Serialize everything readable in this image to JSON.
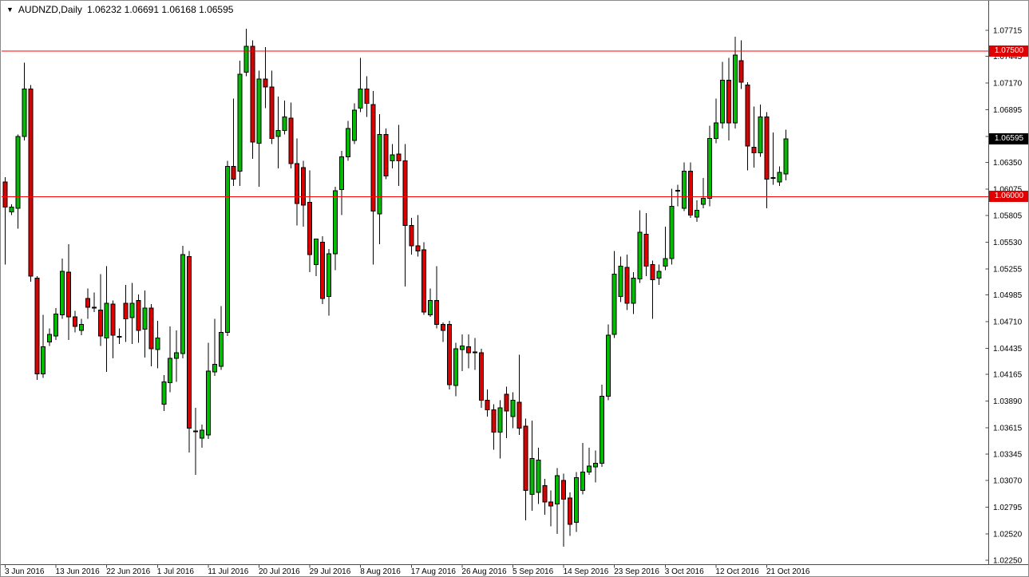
{
  "window": {
    "dropdown_icon": "▼",
    "title_symbol": "AUDNZD,Daily",
    "title_ohlc": "1.06232 1.06691 1.06168 1.06595"
  },
  "colors": {
    "background": "#FFFFFF",
    "bull": "#00BB00",
    "bear": "#DC0000",
    "wick": "#000000",
    "body_outline": "#000000",
    "hline": "#FF0000",
    "tag_red_bg": "#E00000",
    "tag_black_bg": "#000000",
    "tag_text": "#FFFFFF",
    "axis_line": "#4A4A4A",
    "text": "#000000"
  },
  "y_axis": [
    {
      "label": "1.07715",
      "price": 1.07715
    },
    {
      "label": "1.07445",
      "price": 1.07445
    },
    {
      "label": "1.07170",
      "price": 1.0717
    },
    {
      "label": "1.06895",
      "price": 1.06895
    },
    {
      "label": "1.06620",
      "price": 1.0662
    },
    {
      "label": "1.06350",
      "price": 1.0635
    },
    {
      "label": "1.06075",
      "price": 1.06075
    },
    {
      "label": "1.05805",
      "price": 1.05805
    },
    {
      "label": "1.05530",
      "price": 1.0553
    },
    {
      "label": "1.05255",
      "price": 1.05255
    },
    {
      "label": "1.04985",
      "price": 1.04985
    },
    {
      "label": "1.04710",
      "price": 1.0471
    },
    {
      "label": "1.04435",
      "price": 1.04435
    },
    {
      "label": "1.04165",
      "price": 1.04165
    },
    {
      "label": "1.03890",
      "price": 1.0389
    },
    {
      "label": "1.03615",
      "price": 1.03615
    },
    {
      "label": "1.03345",
      "price": 1.03345
    },
    {
      "label": "1.03070",
      "price": 1.0307
    },
    {
      "label": "1.02795",
      "price": 1.02795
    },
    {
      "label": "1.02520",
      "price": 1.0252
    },
    {
      "label": "1.02250",
      "price": 1.0225
    }
  ],
  "x_axis": [
    {
      "label": "3 Jun 2016",
      "idx": 0
    },
    {
      "label": "13 Jun 2016",
      "idx": 8
    },
    {
      "label": "22 Jun 2016",
      "idx": 16
    },
    {
      "label": "1 Jul 2016",
      "idx": 24
    },
    {
      "label": "11 Jul 2016",
      "idx": 32
    },
    {
      "label": "20 Jul 2016",
      "idx": 40
    },
    {
      "label": "29 Jul 2016",
      "idx": 48
    },
    {
      "label": "8 Aug 2016",
      "idx": 56
    },
    {
      "label": "17 Aug 2016",
      "idx": 64
    },
    {
      "label": "26 Aug 2016",
      "idx": 72
    },
    {
      "label": "5 Sep 2016",
      "idx": 80
    },
    {
      "label": "14 Sep 2016",
      "idx": 88
    },
    {
      "label": "23 Sep 2016",
      "idx": 96
    },
    {
      "label": "3 Oct 2016",
      "idx": 104
    },
    {
      "label": "12 Oct 2016",
      "idx": 112
    },
    {
      "label": "21 Oct 2016",
      "idx": 120
    }
  ],
  "hlines": [
    {
      "price": 1.075,
      "tag": "1.07500"
    },
    {
      "price": 1.06,
      "tag": "1.06000"
    }
  ],
  "price_tag": {
    "value": "1.06595",
    "price": 1.06595
  },
  "chart_data": {
    "type": "candlestick",
    "symbol": "AUDNZD",
    "timeframe": "Daily",
    "title": "AUDNZD,Daily",
    "current_bar": {
      "open": 1.06232,
      "high": 1.06691,
      "low": 1.06168,
      "close": 1.06595
    },
    "y_range": [
      1.0225,
      1.07715
    ],
    "x_range": [
      "3 Jun 2016",
      "26 Oct 2016"
    ],
    "grid": false,
    "legend": false,
    "horizontal_levels": [
      1.075,
      1.06
    ],
    "candles_format": "[open, high, low, close, dash?]",
    "candles": [
      [
        1.0615,
        1.062,
        1.053,
        1.0589
      ],
      [
        1.0584,
        1.0592,
        1.0581,
        1.0589
      ],
      [
        1.0588,
        1.0664,
        1.0567,
        1.0662
      ],
      [
        1.0662,
        1.0738,
        1.0658,
        1.0711
      ],
      [
        1.0711,
        1.0715,
        1.0512,
        1.0518
      ],
      [
        1.0516,
        1.0518,
        1.0411,
        1.0417
      ],
      [
        1.0417,
        1.0478,
        1.0413,
        1.0445
      ],
      [
        1.045,
        1.0464,
        1.0446,
        1.0458
      ],
      [
        1.0456,
        1.0485,
        1.0452,
        1.0479
      ],
      [
        1.0478,
        1.0536,
        1.0474,
        1.0523
      ],
      [
        1.0522,
        1.0551,
        1.0452,
        1.0476
      ],
      [
        1.0476,
        1.0482,
        1.046,
        1.0466
      ],
      [
        1.0462,
        1.0474,
        1.0457,
        1.0468
      ],
      [
        1.0495,
        1.0505,
        1.0474,
        1.0486
      ],
      [
        1.0486,
        1.0501,
        1.0481,
        1.0485,
        1
      ],
      [
        1.0483,
        1.052,
        1.0446,
        1.0456
      ],
      [
        1.0454,
        1.0528,
        1.0419,
        1.049
      ],
      [
        1.0489,
        1.0493,
        1.0433,
        1.0457
      ],
      [
        1.0456,
        1.0464,
        1.0448,
        1.0455,
        1
      ],
      [
        1.049,
        1.0509,
        1.045,
        1.0474
      ],
      [
        1.0475,
        1.0511,
        1.0448,
        1.049
      ],
      [
        1.0493,
        1.0499,
        1.0449,
        1.0462
      ],
      [
        1.0463,
        1.0503,
        1.0434,
        1.0485
      ],
      [
        1.0485,
        1.0489,
        1.0425,
        1.0443
      ],
      [
        1.0442,
        1.0472,
        1.0423,
        1.0454
      ],
      [
        1.0386,
        1.0416,
        1.0379,
        1.0409
      ],
      [
        1.0408,
        1.0466,
        1.0398,
        1.0433
      ],
      [
        1.0433,
        1.0462,
        1.0409,
        1.0439
      ],
      [
        1.0438,
        1.0549,
        1.0433,
        1.054
      ],
      [
        1.0538,
        1.0544,
        1.0336,
        1.0361
      ],
      [
        1.0359,
        1.0382,
        1.0313,
        1.0357,
        1
      ],
      [
        1.0351,
        1.0365,
        1.0341,
        1.0359
      ],
      [
        1.0354,
        1.0449,
        1.035,
        1.042
      ],
      [
        1.0419,
        1.0474,
        1.0415,
        1.0427
      ],
      [
        1.0425,
        1.0487,
        1.0421,
        1.046
      ],
      [
        1.046,
        1.0637,
        1.0456,
        1.0631
      ],
      [
        1.0631,
        1.0701,
        1.0611,
        1.0618
      ],
      [
        1.0626,
        1.074,
        1.0611,
        1.0726
      ],
      [
        1.0728,
        1.0773,
        1.0724,
        1.0755
      ],
      [
        1.0755,
        1.0761,
        1.0639,
        1.0656
      ],
      [
        1.0655,
        1.073,
        1.061,
        1.0721
      ],
      [
        1.0721,
        1.0754,
        1.0691,
        1.0713
      ],
      [
        1.0713,
        1.073,
        1.0654,
        1.066
      ],
      [
        1.0662,
        1.0703,
        1.0629,
        1.0668
      ],
      [
        1.0668,
        1.0699,
        1.0664,
        1.0682
      ],
      [
        1.0681,
        1.0697,
        1.0629,
        1.0634
      ],
      [
        1.0634,
        1.066,
        1.057,
        1.0593
      ],
      [
        1.063,
        1.0637,
        1.0569,
        1.0591
      ],
      [
        1.0594,
        1.0627,
        1.0522,
        1.054
      ],
      [
        1.053,
        1.0556,
        1.0518,
        1.0556
      ],
      [
        1.0553,
        1.0559,
        1.0489,
        1.0495
      ],
      [
        1.0497,
        1.0546,
        1.0477,
        1.0541
      ],
      [
        1.0541,
        1.061,
        1.0524,
        1.0606
      ],
      [
        1.0607,
        1.0647,
        1.0581,
        1.0641
      ],
      [
        1.0641,
        1.0678,
        1.0637,
        1.067
      ],
      [
        1.0658,
        1.0696,
        1.0654,
        1.0689
      ],
      [
        1.0691,
        1.0743,
        1.0687,
        1.0711
      ],
      [
        1.0711,
        1.0724,
        1.0682,
        1.0696
      ],
      [
        1.0695,
        1.0709,
        1.053,
        1.0585
      ],
      [
        1.0582,
        1.0685,
        1.0551,
        1.0664
      ],
      [
        1.0664,
        1.067,
        1.0618,
        1.0621
      ],
      [
        1.0637,
        1.0654,
        1.0629,
        1.0643
      ],
      [
        1.0644,
        1.0674,
        1.0611,
        1.0637
      ],
      [
        1.0637,
        1.0654,
        1.0507,
        1.057
      ],
      [
        1.057,
        1.0578,
        1.054,
        1.0549
      ],
      [
        1.0549,
        1.0581,
        1.0538,
        1.0544
      ],
      [
        1.0545,
        1.0553,
        1.0478,
        1.0481
      ],
      [
        1.0478,
        1.0505,
        1.0476,
        1.0493
      ],
      [
        1.0493,
        1.0528,
        1.0464,
        1.0468
      ],
      [
        1.0468,
        1.047,
        1.045,
        1.0462
      ],
      [
        1.0468,
        1.0472,
        1.0401,
        1.0406
      ],
      [
        1.0405,
        1.0449,
        1.0394,
        1.0443
      ],
      [
        1.0442,
        1.0458,
        1.042,
        1.0446
      ],
      [
        1.0445,
        1.0458,
        1.0423,
        1.0439
      ],
      [
        1.044,
        1.0454,
        1.0421,
        1.0439,
        1
      ],
      [
        1.0439,
        1.0443,
        1.0382,
        1.039
      ],
      [
        1.039,
        1.0401,
        1.0373,
        1.038
      ],
      [
        1.038,
        1.0386,
        1.0339,
        1.0357
      ],
      [
        1.0357,
        1.039,
        1.033,
        1.0382
      ],
      [
        1.0396,
        1.0404,
        1.0351,
        1.0379
      ],
      [
        1.0373,
        1.0398,
        1.0361,
        1.039
      ],
      [
        1.0388,
        1.0437,
        1.0354,
        1.0361
      ],
      [
        1.0363,
        1.0371,
        1.0266,
        1.0297
      ],
      [
        1.0293,
        1.0369,
        1.0276,
        1.033
      ],
      [
        1.0295,
        1.0341,
        1.0283,
        1.0328
      ],
      [
        1.0302,
        1.0309,
        1.0272,
        1.0285
      ],
      [
        1.0285,
        1.0297,
        1.026,
        1.0281
      ],
      [
        1.0283,
        1.032,
        1.0252,
        1.0312
      ],
      [
        1.0307,
        1.0314,
        1.0239,
        1.0288
      ],
      [
        1.0289,
        1.0295,
        1.025,
        1.0262
      ],
      [
        1.0264,
        1.0316,
        1.0254,
        1.031
      ],
      [
        1.0297,
        1.0346,
        1.0293,
        1.0316
      ],
      [
        1.0316,
        1.0341,
        1.0313,
        1.0322
      ],
      [
        1.0321,
        1.0338,
        1.0305,
        1.0325
      ],
      [
        1.0325,
        1.0406,
        1.0321,
        1.0394
      ],
      [
        1.0394,
        1.0468,
        1.039,
        1.0457
      ],
      [
        1.0458,
        1.0544,
        1.0454,
        1.052
      ],
      [
        1.0497,
        1.0538,
        1.0491,
        1.0528
      ],
      [
        1.0527,
        1.054,
        1.0483,
        1.049
      ],
      [
        1.049,
        1.0522,
        1.0479,
        1.0516
      ],
      [
        1.0515,
        1.0586,
        1.0511,
        1.0563
      ],
      [
        1.0561,
        1.0583,
        1.0518,
        1.0528
      ],
      [
        1.053,
        1.0534,
        1.0474,
        1.0514
      ],
      [
        1.0516,
        1.053,
        1.0509,
        1.0523
      ],
      [
        1.0528,
        1.0569,
        1.0524,
        1.0536
      ],
      [
        1.0536,
        1.0608,
        1.053,
        1.059
      ],
      [
        1.0605,
        1.0612,
        1.059,
        1.0607,
        1
      ],
      [
        1.0588,
        1.0635,
        1.0585,
        1.0626
      ],
      [
        1.0626,
        1.0635,
        1.0578,
        1.0581
      ],
      [
        1.0579,
        1.0596,
        1.0574,
        1.0586
      ],
      [
        1.0592,
        1.0619,
        1.0588,
        1.0598
      ],
      [
        1.0598,
        1.0673,
        1.059,
        1.066
      ],
      [
        1.066,
        1.0701,
        1.0655,
        1.0676
      ],
      [
        1.0676,
        1.0739,
        1.067,
        1.072
      ],
      [
        1.072,
        1.0743,
        1.0658,
        1.0676
      ],
      [
        1.0676,
        1.0765,
        1.067,
        1.0746
      ],
      [
        1.074,
        1.0761,
        1.0711,
        1.0718
      ],
      [
        1.0715,
        1.0718,
        1.0627,
        1.0652
      ],
      [
        1.0651,
        1.0693,
        1.063,
        1.0645
      ],
      [
        1.0645,
        1.0695,
        1.0641,
        1.0682
      ],
      [
        1.0682,
        1.0687,
        1.0588,
        1.0618
      ],
      [
        1.062,
        1.0666,
        1.0612,
        1.0618,
        1
      ],
      [
        1.0615,
        1.0631,
        1.0611,
        1.0625
      ],
      [
        1.06232,
        1.06691,
        1.06168,
        1.06595
      ]
    ]
  }
}
